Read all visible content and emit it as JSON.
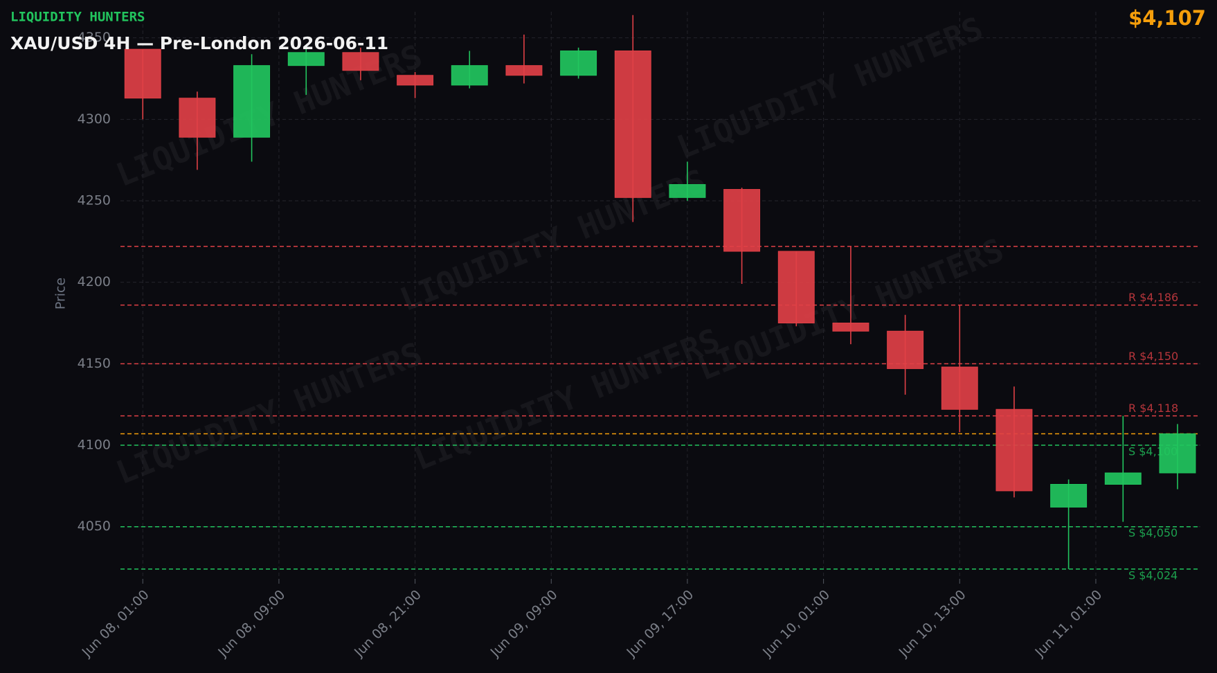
{
  "chart_data": {
    "type": "candlestick",
    "brand": "LIQUIDITY HUNTERS",
    "title": "XAU/USD 4H — Pre-London 2026-06-11",
    "current_price": {
      "value": 4107,
      "label": "$4,107"
    },
    "y_label": "Price",
    "watermark": "LIQUIDITY HUNTERS",
    "x": [
      0,
      1,
      2,
      3,
      4,
      5,
      6,
      7,
      8,
      9,
      10,
      11,
      12,
      13,
      14,
      15,
      16,
      17,
      18,
      19
    ],
    "open": [
      4343,
      4313,
      4289,
      4333,
      4341,
      4327,
      4321,
      4333,
      4327,
      4342,
      4252,
      4257,
      4219,
      4175,
      4170,
      4148,
      4122,
      4062,
      4076,
      4083
    ],
    "high": [
      4343,
      4317,
      4340,
      4345,
      4344,
      4329,
      4342,
      4352,
      4344,
      4364,
      4274,
      4258,
      4219,
      4222,
      4180,
      4186,
      4136,
      4079,
      4118,
      4113
    ],
    "low": [
      4300,
      4269,
      4274,
      4315,
      4324,
      4313,
      4319,
      4322,
      4325,
      4237,
      4250,
      4199,
      4173,
      4162,
      4131,
      4108,
      4068,
      4024,
      4053,
      4073
    ],
    "close": [
      4313,
      4289,
      4333,
      4341,
      4330,
      4321,
      4333,
      4327,
      4342,
      4252,
      4260,
      4219,
      4175,
      4170,
      4147,
      4122,
      4072,
      4076,
      4083,
      4107
    ],
    "up_color": "#22c55e",
    "down_color": "#e04046",
    "xlim": [
      -0.41,
      19.42
    ],
    "xticks": [
      {
        "value": 0,
        "label": "Jun 08, 01:00"
      },
      {
        "value": 2.5,
        "label": "Jun 08, 09:00"
      },
      {
        "value": 5,
        "label": "Jun 08, 21:00"
      },
      {
        "value": 7.5,
        "label": "Jun 09, 09:00"
      },
      {
        "value": 10,
        "label": "Jun 09, 17:00"
      },
      {
        "value": 12.5,
        "label": "Jun 10, 01:00"
      },
      {
        "value": 15,
        "label": "Jun 10, 13:00"
      },
      {
        "value": 17.5,
        "label": "Jun 11, 01:00"
      }
    ],
    "ylim": [
      4018,
      4366
    ],
    "yticks": [
      4050,
      4100,
      4150,
      4200,
      4250,
      4300,
      4350
    ],
    "grid": true,
    "levels": [
      {
        "value": 4222,
        "color": "#e04046"
      },
      {
        "value": 4186,
        "color": "#e04046",
        "label": "R $4,186"
      },
      {
        "value": 4150,
        "color": "#e04046",
        "label": "R $4,150"
      },
      {
        "value": 4118,
        "color": "#e04046",
        "label": "R $4,118"
      },
      {
        "value": 4100,
        "color": "#22c55e",
        "label": "S $4,100"
      },
      {
        "value": 4050,
        "color": "#22c55e",
        "label": "S $4,050"
      },
      {
        "value": 4024,
        "color": "#22c55e",
        "label": "S $4,024"
      }
    ],
    "price_line_color": "#f59e0b"
  }
}
